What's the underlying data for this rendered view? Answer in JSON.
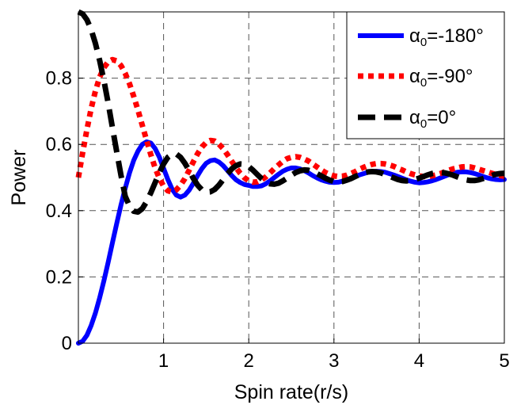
{
  "chart_data": {
    "type": "line",
    "title": "",
    "xlabel": "Spin rate(r/s)",
    "ylabel": "Power",
    "xlim": [
      0,
      5
    ],
    "ylim": [
      0,
      1
    ],
    "xticks": [
      1,
      2,
      3,
      4,
      5
    ],
    "xtick_labels": [
      "1",
      "2",
      "3",
      "4",
      "5"
    ],
    "yticks": [
      0,
      0.2,
      0.4,
      0.6,
      0.8
    ],
    "ytick_labels": [
      "0",
      "0.2",
      "0.4",
      "0.6",
      "0.8"
    ],
    "grid": true,
    "legend_position": "top-right",
    "series": [
      {
        "name": "α0=-180°",
        "legend_prefix": "α",
        "legend_sub": "0",
        "legend_suffix": "=-180°",
        "color": "#0000ff",
        "style": "solid",
        "x": [
          0.0,
          0.05,
          0.1,
          0.15,
          0.2,
          0.25,
          0.3,
          0.35,
          0.4,
          0.45,
          0.5,
          0.55,
          0.6,
          0.65,
          0.7,
          0.75,
          0.8,
          0.85,
          0.9,
          0.95,
          1.0,
          1.05,
          1.1,
          1.15,
          1.2,
          1.25,
          1.3,
          1.35,
          1.4,
          1.45,
          1.5,
          1.55,
          1.6,
          1.65,
          1.7,
          1.75,
          1.8,
          1.85,
          1.9,
          1.95,
          2.0,
          2.05,
          2.1,
          2.15,
          2.2,
          2.25,
          2.3,
          2.35,
          2.4,
          2.45,
          2.5,
          2.55,
          2.6,
          2.65,
          2.7,
          2.75,
          2.8,
          2.85,
          2.9,
          2.95,
          3.0,
          3.05,
          3.1,
          3.15,
          3.2,
          3.25,
          3.3,
          3.35,
          3.4,
          3.45,
          3.5,
          3.55,
          3.6,
          3.65,
          3.7,
          3.75,
          3.8,
          3.85,
          3.9,
          3.95,
          4.0,
          4.05,
          4.1,
          4.15,
          4.2,
          4.25,
          4.3,
          4.35,
          4.4,
          4.45,
          4.5,
          4.55,
          4.6,
          4.65,
          4.7,
          4.75,
          4.8,
          4.85,
          4.9,
          4.95,
          5.0
        ],
        "y": [
          0.0,
          0.006,
          0.024,
          0.053,
          0.091,
          0.137,
          0.189,
          0.245,
          0.303,
          0.361,
          0.417,
          0.468,
          0.514,
          0.552,
          0.58,
          0.6,
          0.608,
          0.604,
          0.588,
          0.562,
          0.528,
          0.494,
          0.465,
          0.447,
          0.441,
          0.447,
          0.462,
          0.483,
          0.506,
          0.527,
          0.543,
          0.551,
          0.553,
          0.547,
          0.536,
          0.521,
          0.506,
          0.493,
          0.485,
          0.479,
          0.476,
          0.473,
          0.473,
          0.475,
          0.481,
          0.49,
          0.5,
          0.51,
          0.519,
          0.525,
          0.529,
          0.529,
          0.526,
          0.521,
          0.514,
          0.506,
          0.499,
          0.493,
          0.489,
          0.486,
          0.485,
          0.486,
          0.489,
          0.493,
          0.498,
          0.503,
          0.508,
          0.512,
          0.516,
          0.518,
          0.519,
          0.518,
          0.516,
          0.512,
          0.508,
          0.503,
          0.498,
          0.493,
          0.489,
          0.486,
          0.484,
          0.485,
          0.487,
          0.49,
          0.494,
          0.499,
          0.504,
          0.509,
          0.513,
          0.516,
          0.517,
          0.517,
          0.515,
          0.512,
          0.508,
          0.503,
          0.499,
          0.496,
          0.494,
          0.493,
          0.494
        ]
      },
      {
        "name": "α0=-90°",
        "legend_prefix": "α",
        "legend_sub": "0",
        "legend_suffix": "=-90°",
        "color": "#ff0000",
        "style": "dotted",
        "x": [
          0.0,
          0.05,
          0.1,
          0.15,
          0.2,
          0.25,
          0.3,
          0.35,
          0.4,
          0.45,
          0.5,
          0.55,
          0.6,
          0.65,
          0.7,
          0.75,
          0.8,
          0.85,
          0.9,
          0.95,
          1.0,
          1.05,
          1.1,
          1.15,
          1.2,
          1.25,
          1.3,
          1.35,
          1.4,
          1.45,
          1.5,
          1.55,
          1.6,
          1.65,
          1.7,
          1.75,
          1.8,
          1.85,
          1.9,
          1.95,
          2.0,
          2.05,
          2.1,
          2.15,
          2.2,
          2.25,
          2.3,
          2.35,
          2.4,
          2.45,
          2.5,
          2.55,
          2.6,
          2.65,
          2.7,
          2.75,
          2.8,
          2.85,
          2.9,
          2.95,
          3.0,
          3.05,
          3.1,
          3.15,
          3.2,
          3.25,
          3.3,
          3.35,
          3.4,
          3.45,
          3.5,
          3.55,
          3.6,
          3.65,
          3.7,
          3.75,
          3.8,
          3.85,
          3.9,
          3.95,
          4.0,
          4.05,
          4.1,
          4.15,
          4.2,
          4.25,
          4.3,
          4.35,
          4.4,
          4.45,
          4.5,
          4.55,
          4.6,
          4.65,
          4.7,
          4.75,
          4.8,
          4.85,
          4.9,
          4.95,
          5.0
        ],
        "y": [
          0.5,
          0.575,
          0.645,
          0.708,
          0.761,
          0.803,
          0.832,
          0.849,
          0.856,
          0.852,
          0.838,
          0.814,
          0.783,
          0.745,
          0.703,
          0.658,
          0.613,
          0.569,
          0.53,
          0.498,
          0.474,
          0.46,
          0.456,
          0.463,
          0.477,
          0.497,
          0.522,
          0.548,
          0.572,
          0.592,
          0.606,
          0.612,
          0.61,
          0.601,
          0.587,
          0.569,
          0.549,
          0.53,
          0.513,
          0.499,
          0.49,
          0.486,
          0.487,
          0.493,
          0.502,
          0.514,
          0.527,
          0.538,
          0.549,
          0.557,
          0.561,
          0.563,
          0.561,
          0.556,
          0.55,
          0.541,
          0.532,
          0.523,
          0.515,
          0.509,
          0.505,
          0.503,
          0.504,
          0.507,
          0.512,
          0.518,
          0.525,
          0.531,
          0.536,
          0.54,
          0.542,
          0.542,
          0.541,
          0.538,
          0.534,
          0.528,
          0.523,
          0.517,
          0.512,
          0.508,
          0.505,
          0.503,
          0.503,
          0.505,
          0.508,
          0.512,
          0.517,
          0.522,
          0.526,
          0.529,
          0.532,
          0.533,
          0.532,
          0.529,
          0.525,
          0.521,
          0.517,
          0.513,
          0.509,
          0.506,
          0.504
        ]
      },
      {
        "name": "α0=0°",
        "legend_prefix": "α",
        "legend_sub": "0",
        "legend_suffix": "=0°",
        "color": "#000000",
        "style": "dashed",
        "x": [
          0.0,
          0.05,
          0.1,
          0.15,
          0.2,
          0.25,
          0.3,
          0.35,
          0.4,
          0.45,
          0.5,
          0.55,
          0.6,
          0.65,
          0.7,
          0.75,
          0.8,
          0.85,
          0.9,
          0.95,
          1.0,
          1.05,
          1.1,
          1.15,
          1.2,
          1.25,
          1.3,
          1.35,
          1.4,
          1.45,
          1.5,
          1.55,
          1.6,
          1.65,
          1.7,
          1.75,
          1.8,
          1.85,
          1.9,
          1.95,
          2.0,
          2.05,
          2.1,
          2.15,
          2.2,
          2.25,
          2.3,
          2.35,
          2.4,
          2.45,
          2.5,
          2.55,
          2.6,
          2.65,
          2.7,
          2.75,
          2.8,
          2.85,
          2.9,
          2.95,
          3.0,
          3.05,
          3.1,
          3.15,
          3.2,
          3.25,
          3.3,
          3.35,
          3.4,
          3.45,
          3.5,
          3.55,
          3.6,
          3.65,
          3.7,
          3.75,
          3.8,
          3.85,
          3.9,
          3.95,
          4.0,
          4.05,
          4.1,
          4.15,
          4.2,
          4.25,
          4.3,
          4.35,
          4.4,
          4.45,
          4.5,
          4.55,
          4.6,
          4.65,
          4.7,
          4.75,
          4.8,
          4.85,
          4.9,
          4.95,
          5.0
        ],
        "y": [
          1.0,
          0.994,
          0.976,
          0.947,
          0.905,
          0.853,
          0.792,
          0.724,
          0.651,
          0.578,
          0.507,
          0.443,
          0.414,
          0.398,
          0.396,
          0.406,
          0.427,
          0.454,
          0.484,
          0.514,
          0.541,
          0.561,
          0.571,
          0.571,
          0.561,
          0.543,
          0.521,
          0.497,
          0.477,
          0.463,
          0.456,
          0.457,
          0.464,
          0.477,
          0.494,
          0.511,
          0.526,
          0.536,
          0.541,
          0.54,
          0.533,
          0.522,
          0.509,
          0.497,
          0.487,
          0.481,
          0.48,
          0.483,
          0.49,
          0.498,
          0.507,
          0.515,
          0.52,
          0.523,
          0.522,
          0.518,
          0.512,
          0.505,
          0.498,
          0.492,
          0.488,
          0.487,
          0.488,
          0.492,
          0.497,
          0.503,
          0.509,
          0.514,
          0.517,
          0.518,
          0.517,
          0.514,
          0.509,
          0.504,
          0.499,
          0.494,
          0.491,
          0.49,
          0.491,
          0.494,
          0.498,
          0.503,
          0.508,
          0.512,
          0.514,
          0.515,
          0.514,
          0.511,
          0.507,
          0.502,
          0.497,
          0.493,
          0.491,
          0.491,
          0.493,
          0.497,
          0.501,
          0.506,
          0.51,
          0.512,
          0.513
        ]
      }
    ]
  }
}
